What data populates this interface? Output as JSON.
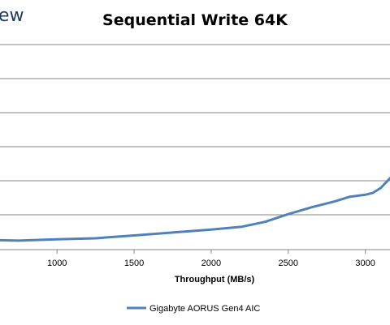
{
  "logo_text": "ew",
  "chart_data": {
    "type": "line",
    "title": "Sequential Write 64K",
    "xlabel": "Throughput (MB/s)",
    "ylabel": "",
    "xlim": [
      630,
      3160
    ],
    "ylim": [
      0,
      1.05
    ],
    "x_ticks": [
      1000,
      1500,
      2000,
      2500,
      3000
    ],
    "x_tick_labels": [
      "1000",
      "1500",
      "2000",
      "2500",
      "3000"
    ],
    "grid": "horizontal",
    "legend_position": "bottom-center",
    "colors": {
      "series": "#4f81bd",
      "grid": "#868686"
    },
    "series": [
      {
        "name": "Gigabyte AORUS Gen4 AIC",
        "x": [
          630,
          750,
          1000,
          1250,
          1500,
          1750,
          2000,
          2200,
          2350,
          2500,
          2650,
          2800,
          2900,
          3000,
          3050,
          3100,
          3160
        ],
        "y": [
          0.04,
          0.038,
          0.045,
          0.05,
          0.065,
          0.08,
          0.095,
          0.11,
          0.135,
          0.175,
          0.21,
          0.24,
          0.265,
          0.275,
          0.285,
          0.31,
          0.36
        ]
      }
    ]
  }
}
